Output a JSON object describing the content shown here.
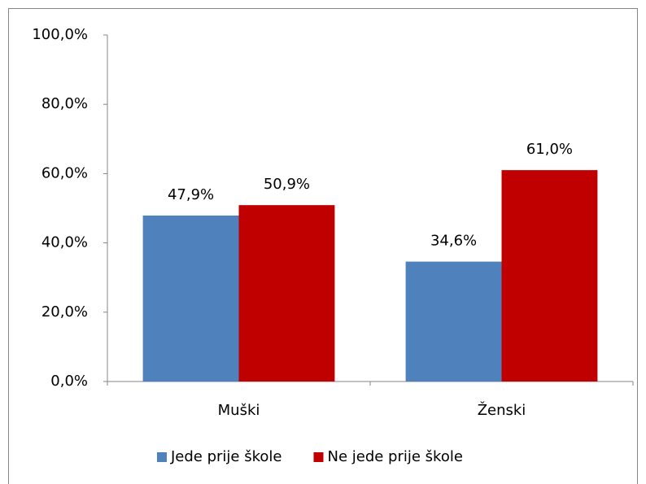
{
  "chart_data": {
    "type": "bar",
    "categories": [
      "Muški",
      "Ženski"
    ],
    "series": [
      {
        "name": "Jede prije škole",
        "color": "#4f81bd",
        "values": [
          47.9,
          34.6
        ],
        "value_labels": [
          "47,9%",
          "34,6%"
        ]
      },
      {
        "name": "Ne jede prije škole",
        "color": "#c00000",
        "values": [
          50.9,
          61.0
        ],
        "value_labels": [
          "50,9%",
          "61,0%"
        ]
      }
    ],
    "ylim": [
      0,
      100
    ],
    "yticks": [
      {
        "value": 0,
        "label": "0,0%"
      },
      {
        "value": 20,
        "label": "20,0%"
      },
      {
        "value": 40,
        "label": "40,0%"
      },
      {
        "value": 60,
        "label": "60,0%"
      },
      {
        "value": 80,
        "label": "80,0%"
      },
      {
        "value": 100,
        "label": "100,0%"
      }
    ],
    "legend": "bottom"
  }
}
